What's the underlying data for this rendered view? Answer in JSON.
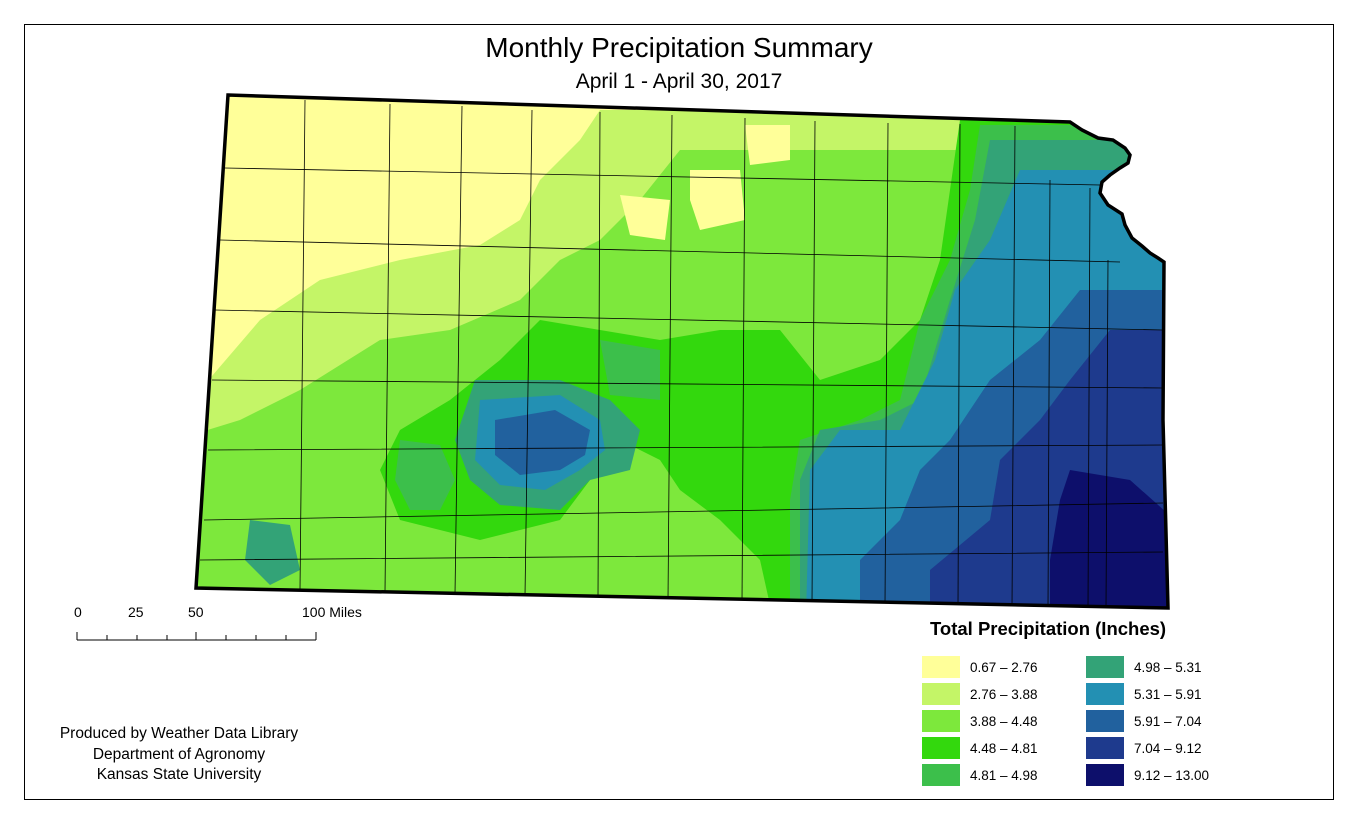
{
  "title": "Monthly Precipitation Summary",
  "subtitle": "April 1 - April 30, 2017",
  "scale_bar": {
    "labels": [
      "0",
      "25",
      "50",
      "100 Miles"
    ],
    "values_miles": [
      0,
      25,
      50,
      100
    ]
  },
  "credit": {
    "line1": "Produced by Weather Data Library",
    "line2": "Department of Agronomy",
    "line3": "Kansas State University"
  },
  "legend": {
    "title": "Total Precipitation (Inches)",
    "items": [
      {
        "label": "0.67 – 2.76",
        "color": "#ffff99"
      },
      {
        "label": "2.76 – 3.88",
        "color": "#c4f567"
      },
      {
        "label": "3.88 – 4.48",
        "color": "#7de83c"
      },
      {
        "label": "4.48 – 4.81",
        "color": "#33d80d"
      },
      {
        "label": "4.81 – 4.98",
        "color": "#3cbf4b"
      },
      {
        "label": "4.98 – 5.31",
        "color": "#33a377"
      },
      {
        "label": "5.31 – 5.91",
        "color": "#2390b3"
      },
      {
        "label": "5.91 – 7.04",
        "color": "#21619e"
      },
      {
        "label": "7.04 – 9.12",
        "color": "#1e3a8d"
      },
      {
        "label": "9.12 – 13.00",
        "color": "#0d0f6b"
      }
    ]
  }
}
